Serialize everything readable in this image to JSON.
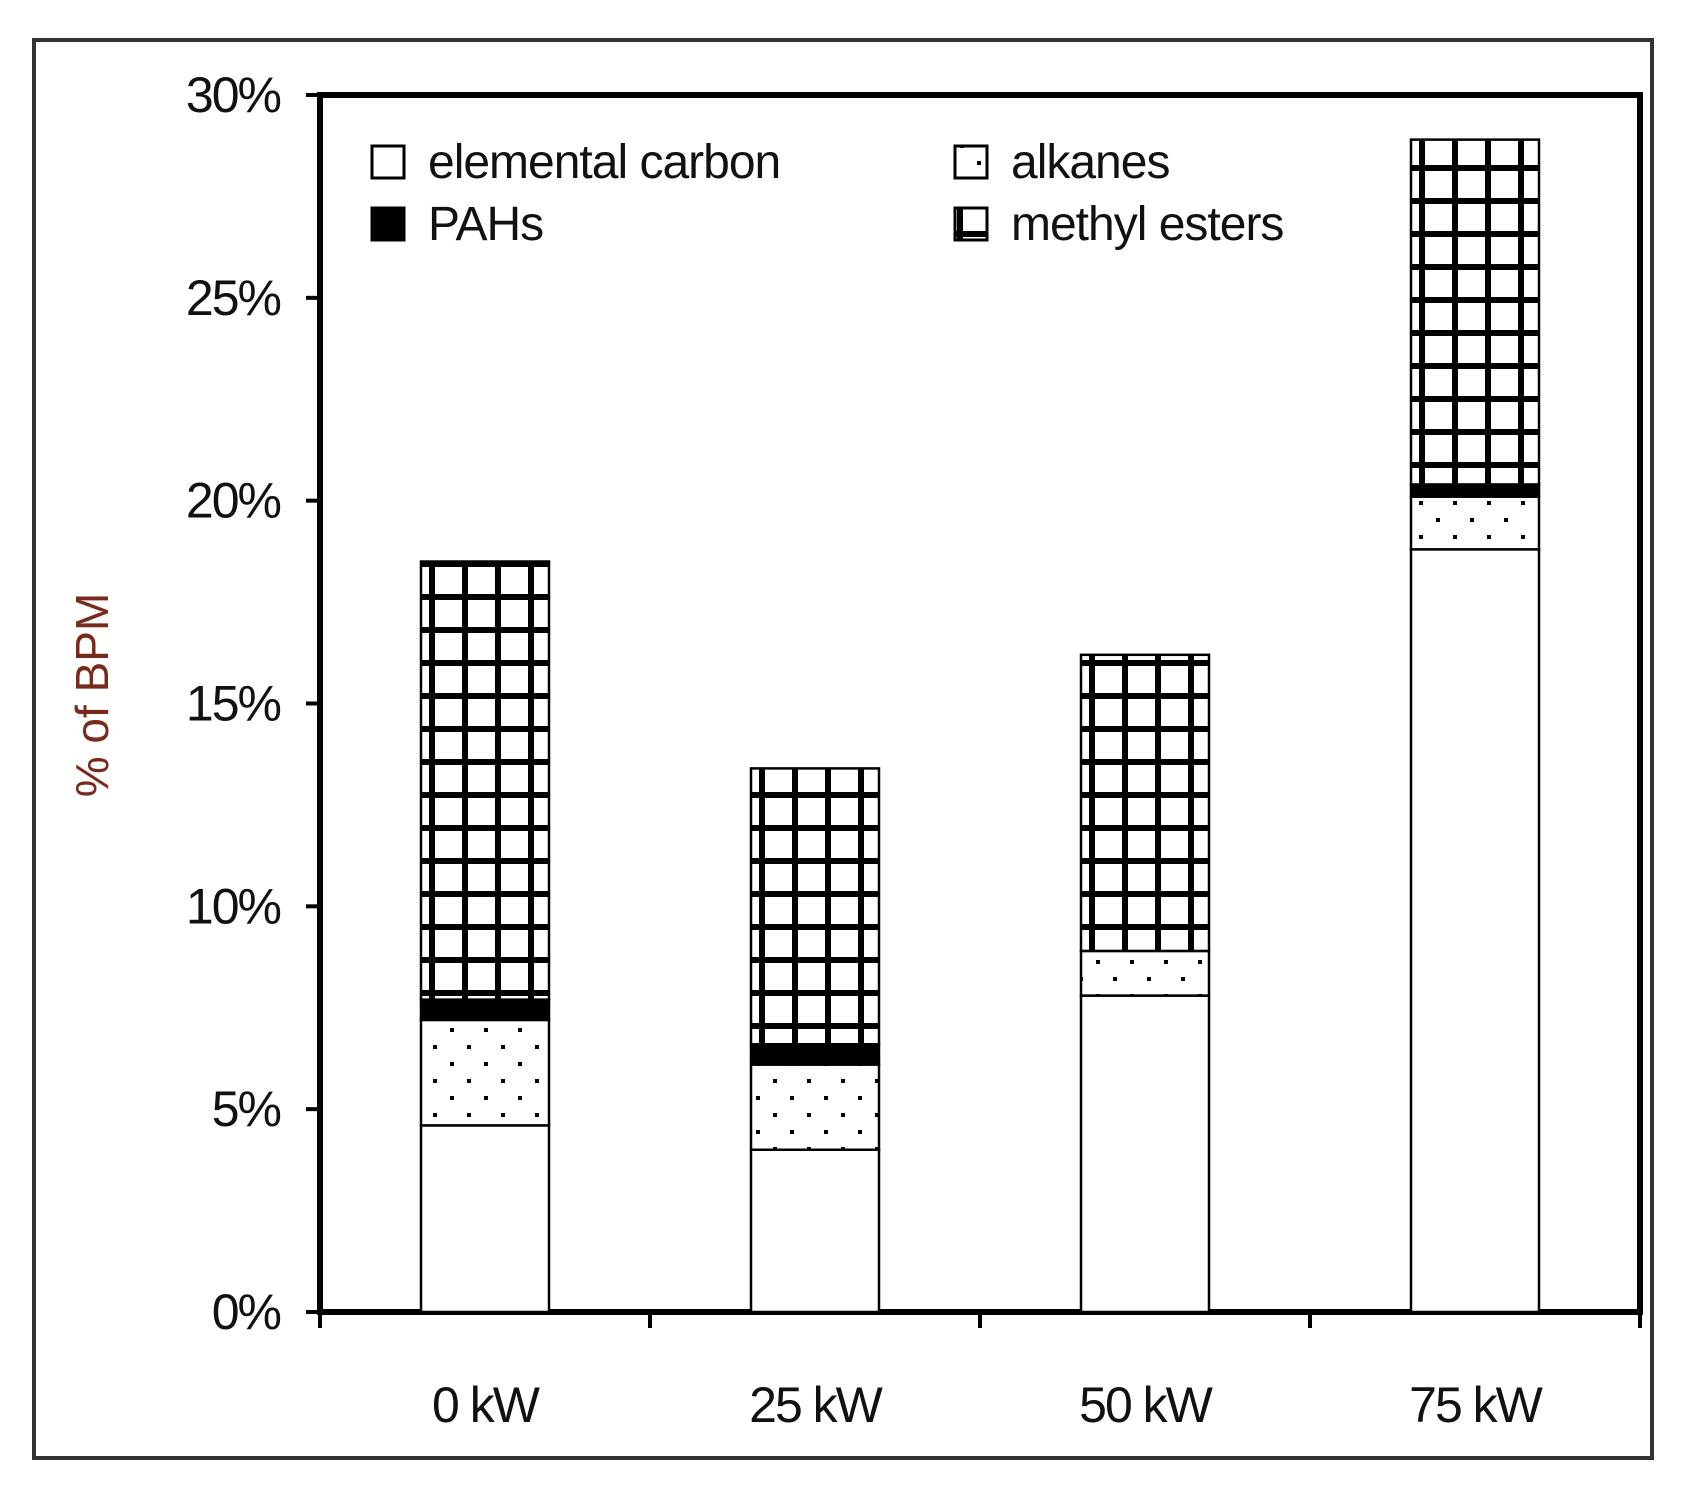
{
  "chart_data": {
    "type": "bar",
    "stacked": true,
    "categories": [
      "0 kW",
      "25 kW",
      "50 kW",
      "75 kW"
    ],
    "series": [
      {
        "name": "elemental carbon",
        "pattern": "white",
        "values": [
          4.6,
          4.0,
          7.8,
          18.8
        ]
      },
      {
        "name": "alkanes",
        "pattern": "dots",
        "values": [
          2.6,
          2.1,
          1.1,
          1.3
        ]
      },
      {
        "name": "PAHs",
        "pattern": "solid-black",
        "values": [
          0.5,
          0.5,
          0.0,
          0.3
        ]
      },
      {
        "name": "methyl esters",
        "pattern": "grid",
        "values": [
          10.8,
          6.8,
          7.3,
          8.5
        ]
      }
    ],
    "title": "",
    "xlabel": "",
    "ylabel": "% of BPM",
    "ylim": [
      0,
      30
    ],
    "yticks": [
      "0%",
      "5%",
      "10%",
      "15%",
      "20%",
      "25%",
      "30%"
    ],
    "grid": false,
    "legend_position": "top",
    "colors": {
      "ylabel": "#7a2a1a",
      "bar_stroke": "#000000",
      "fill": "#ffffff"
    }
  }
}
